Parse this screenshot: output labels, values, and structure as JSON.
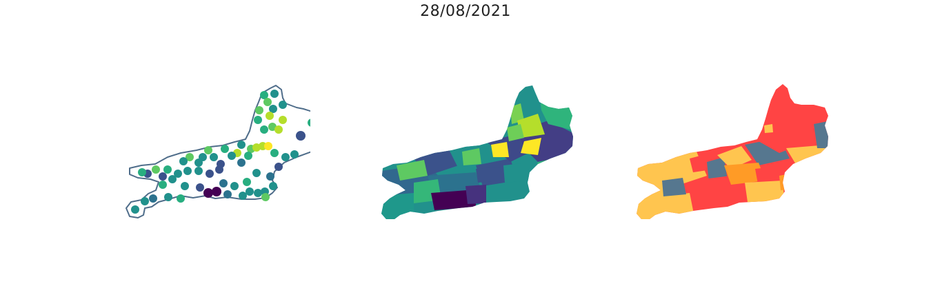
{
  "figure": {
    "title": "28/08/2021"
  },
  "panels": [
    {
      "kind": "point-map",
      "outline_color": "#4f6d8a"
    },
    {
      "kind": "choropleth",
      "palette": [
        "#440154",
        "#433e85",
        "#2a788e",
        "#1f988b",
        "#35b779",
        "#7ad151",
        "#fde725"
      ]
    },
    {
      "kind": "category-map",
      "palette": [
        "#ff4444",
        "#ffc54f",
        "#ff9b26",
        "#56778f"
      ]
    }
  ],
  "colors": {
    "viridis": [
      "#440154",
      "#3b528b",
      "#2c728e",
      "#21918c",
      "#28ae80",
      "#5ec962",
      "#b5de2b",
      "#fde725"
    ],
    "risk": [
      "#ff4444",
      "#ffc54f",
      "#ff9b26",
      "#56778f"
    ],
    "outline": "#4f6d8a"
  }
}
